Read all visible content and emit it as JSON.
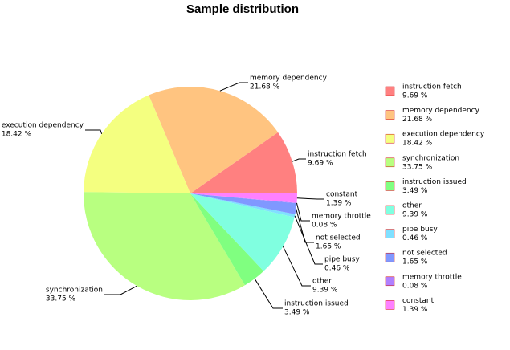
{
  "chart_data": {
    "type": "pie",
    "title": "Sample distribution",
    "categories": [
      "instruction fetch",
      "memory dependency",
      "execution dependency",
      "synchronization",
      "instruction issued",
      "other",
      "pipe busy",
      "not selected",
      "memory throttle",
      "constant"
    ],
    "values": [
      9.69,
      21.68,
      18.42,
      33.75,
      3.49,
      9.39,
      0.46,
      1.65,
      0.08,
      1.39
    ],
    "value_labels": [
      "9.69 %",
      "21.68 %",
      "18.42 %",
      "33.75 %",
      "3.49 %",
      "9.39 %",
      "0.46 %",
      "1.65 %",
      "0.08 %",
      "1.39 %"
    ],
    "colors": [
      "#ff8080",
      "#ffc480",
      "#f4ff80",
      "#b8ff80",
      "#80ff80",
      "#80ffe0",
      "#80e0ff",
      "#8098ff",
      "#b080ff",
      "#ff80ff"
    ]
  }
}
